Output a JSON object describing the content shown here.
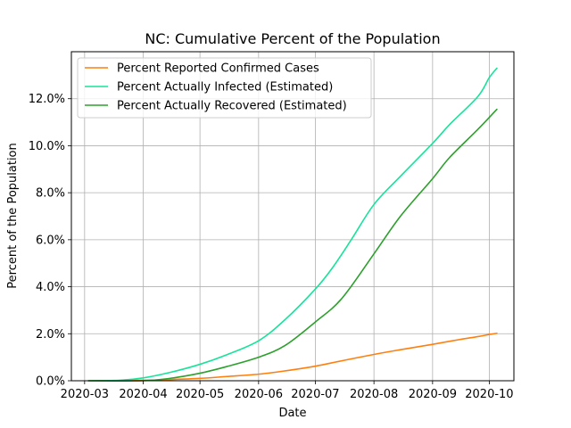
{
  "chart_data": {
    "type": "line",
    "title": "NC: Cumulative Percent of the Population",
    "xlabel": "Date",
    "ylabel": "Percent of the Population",
    "x_ticks": [
      "2020-03",
      "2020-04",
      "2020-05",
      "2020-06",
      "2020-07",
      "2020-08",
      "2020-09",
      "2020-10"
    ],
    "y_ticks": [
      "0.0%",
      "2.0%",
      "4.0%",
      "6.0%",
      "8.0%",
      "10.0%",
      "12.0%"
    ],
    "ylim": [
      0,
      14
    ],
    "xlim": [
      "2020-02-23",
      "2020-10-14"
    ],
    "grid": true,
    "legend_position": "upper-left",
    "series": [
      {
        "name": "Percent Reported Confirmed Cases",
        "color": "#ff7f0e",
        "points": [
          [
            "2020-03-03",
            0.0
          ],
          [
            "2020-04-01",
            0.02
          ],
          [
            "2020-04-15",
            0.05
          ],
          [
            "2020-05-01",
            0.1
          ],
          [
            "2020-05-15",
            0.18
          ],
          [
            "2020-06-01",
            0.28
          ],
          [
            "2020-06-15",
            0.42
          ],
          [
            "2020-07-01",
            0.62
          ],
          [
            "2020-07-15",
            0.85
          ],
          [
            "2020-08-01",
            1.12
          ],
          [
            "2020-08-15",
            1.32
          ],
          [
            "2020-09-01",
            1.55
          ],
          [
            "2020-09-15",
            1.75
          ],
          [
            "2020-09-25",
            1.88
          ],
          [
            "2020-10-01",
            1.97
          ],
          [
            "2020-10-05",
            2.02
          ]
        ]
      },
      {
        "name": "Percent Actually Infected (Estimated)",
        "color": "#17e39a",
        "points": [
          [
            "2020-03-03",
            0.0
          ],
          [
            "2020-03-20",
            0.02
          ],
          [
            "2020-04-01",
            0.12
          ],
          [
            "2020-04-15",
            0.35
          ],
          [
            "2020-05-01",
            0.7
          ],
          [
            "2020-05-15",
            1.1
          ],
          [
            "2020-06-01",
            1.7
          ],
          [
            "2020-06-15",
            2.6
          ],
          [
            "2020-07-01",
            3.9
          ],
          [
            "2020-07-10",
            4.8
          ],
          [
            "2020-07-20",
            6.0
          ],
          [
            "2020-08-01",
            7.5
          ],
          [
            "2020-08-15",
            8.7
          ],
          [
            "2020-09-01",
            10.1
          ],
          [
            "2020-09-10",
            10.9
          ],
          [
            "2020-09-25",
            12.1
          ],
          [
            "2020-10-01",
            12.9
          ],
          [
            "2020-10-05",
            13.3
          ]
        ]
      },
      {
        "name": "Percent Actually Recovered (Estimated)",
        "color": "#2ca02c",
        "points": [
          [
            "2020-03-03",
            0.0
          ],
          [
            "2020-04-01",
            0.0
          ],
          [
            "2020-04-15",
            0.1
          ],
          [
            "2020-05-01",
            0.32
          ],
          [
            "2020-05-15",
            0.6
          ],
          [
            "2020-06-01",
            1.0
          ],
          [
            "2020-06-15",
            1.5
          ],
          [
            "2020-07-01",
            2.5
          ],
          [
            "2020-07-15",
            3.5
          ],
          [
            "2020-08-01",
            5.4
          ],
          [
            "2020-08-15",
            7.0
          ],
          [
            "2020-09-01",
            8.6
          ],
          [
            "2020-09-10",
            9.5
          ],
          [
            "2020-09-25",
            10.7
          ],
          [
            "2020-10-05",
            11.55
          ]
        ]
      }
    ]
  }
}
